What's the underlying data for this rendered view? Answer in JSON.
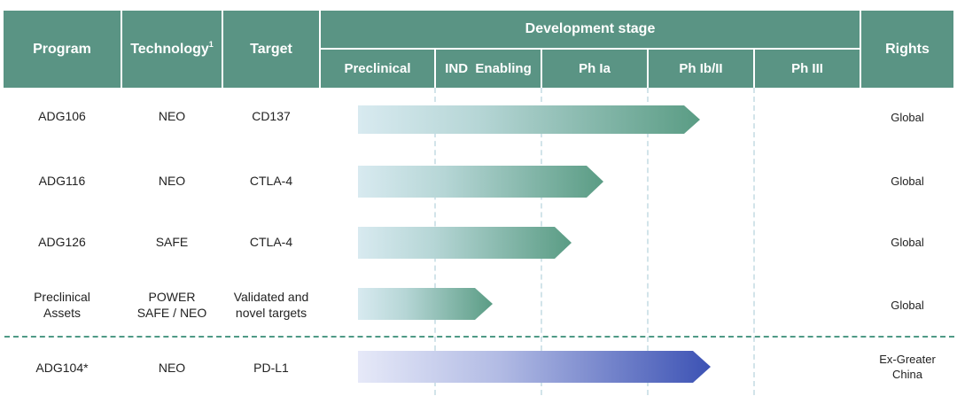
{
  "header": {
    "program": "Program",
    "technology": "Technology",
    "technology_sup": "1",
    "target": "Target",
    "development_stage": "Development stage",
    "rights": "Rights",
    "stages": [
      "Preclinical",
      "IND  Enabling",
      "Ph Ia",
      "Ph Ib/II",
      "Ph III"
    ]
  },
  "rows": [
    {
      "program": "ADG106",
      "technology": "NEO",
      "target": "CD137",
      "rights": "Global",
      "stage": "Ph Ib/II",
      "color": "teal"
    },
    {
      "program": "ADG116",
      "technology": "NEO",
      "target": "CTLA-4",
      "rights": "Global",
      "stage": "Ph Ia",
      "color": "teal"
    },
    {
      "program": "ADG126",
      "technology": "SAFE",
      "target": "CTLA-4",
      "rights": "Global",
      "stage": "Ph Ia",
      "color": "teal"
    },
    {
      "program": "Preclinical\nAssets",
      "technology": "POWER\nSAFE / NEO",
      "target": "Validated and\nnovel targets",
      "rights": "Global",
      "stage": "IND  Enabling",
      "color": "teal"
    },
    {
      "program": "ADG104*",
      "technology": "NEO",
      "target": "PD-L1",
      "rights": "Ex-Greater\nChina",
      "stage": "Ph Ib/II",
      "color": "blue"
    }
  ],
  "colors": {
    "header_bg": "#5a9484",
    "teal_start": "#d8eaf0",
    "teal_end": "#5a9c84",
    "blue_start": "#e6e9f8",
    "blue_end": "#3c52b4",
    "separator": "#4f9a86"
  }
}
